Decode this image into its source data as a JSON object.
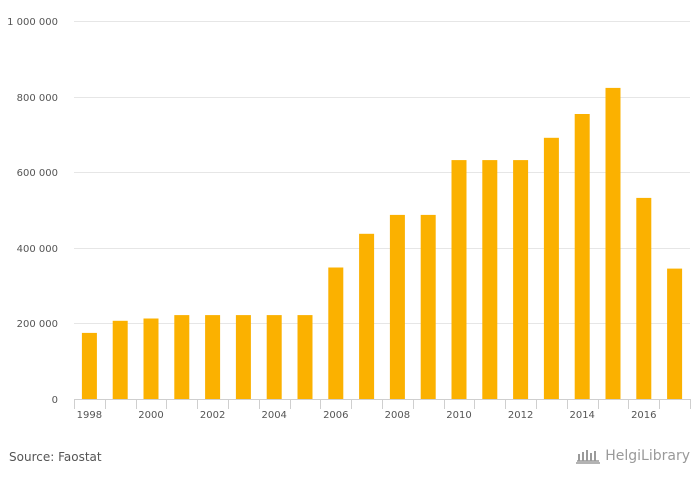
{
  "chart_data": {
    "type": "bar",
    "categories": [
      "1998",
      "1999",
      "2000",
      "2001",
      "2002",
      "2003",
      "2004",
      "2005",
      "2006",
      "2007",
      "2008",
      "2009",
      "2010",
      "2011",
      "2012",
      "2013",
      "2014",
      "2015",
      "2016",
      "2017"
    ],
    "values": [
      175000,
      207000,
      213000,
      222000,
      222000,
      222000,
      222000,
      222000,
      348000,
      437000,
      487000,
      487000,
      632000,
      632000,
      632000,
      691000,
      754000,
      823000,
      532000,
      345000
    ],
    "x_tick_labels": [
      "1998",
      "2000",
      "2002",
      "2004",
      "2006",
      "2008",
      "2010",
      "2012",
      "2014",
      "2016"
    ],
    "y_tick_labels": [
      "0",
      "200 000",
      "400 000",
      "600 000",
      "800 000",
      "1 000 000"
    ],
    "y_ticks": [
      0,
      200000,
      400000,
      600000,
      800000,
      1000000
    ],
    "ylim": [
      0,
      1000000
    ],
    "grid": true,
    "bar_color": "#FBB100",
    "title": "",
    "xlabel": "",
    "ylabel": ""
  },
  "footer": {
    "source": "Source: Faostat",
    "logo_text": "HelgiLibrary"
  }
}
